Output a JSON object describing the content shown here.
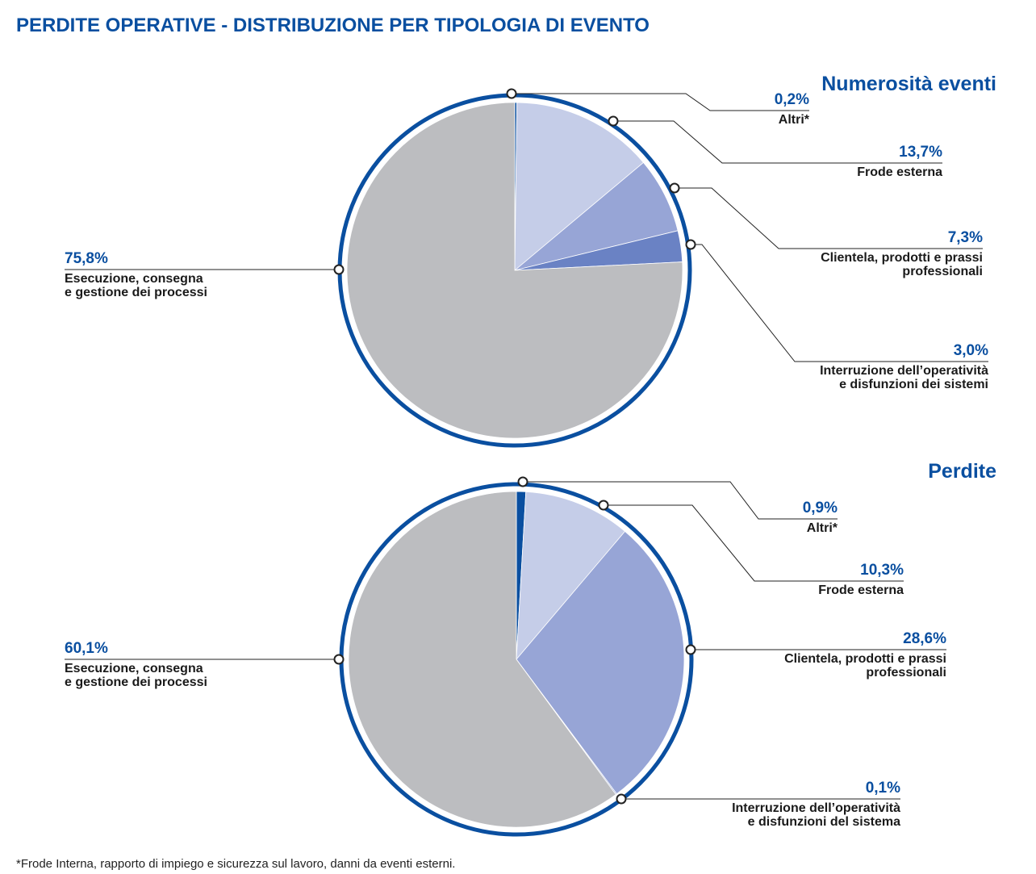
{
  "title": "PERDITE OPERATIVE - DISTRIBUZIONE PER TIPOLOGIA DI EVENTO",
  "footnote": "*Frode Interna, rapporto di impiego e sicurezza sul lavoro, danni da eventi esterni.",
  "chart_data": [
    {
      "type": "pie",
      "title": "Numerosità eventi",
      "categories": [
        "Altri*",
        "Frode esterna",
        "Clientela, prodotti e prassi\nprofessionali",
        "Interruzione dell’operatività\ne disfunzioni dei sistemi",
        "Esecuzione, consegna\ne gestione dei processi"
      ],
      "values": [
        0.2,
        13.7,
        7.3,
        3.0,
        75.8
      ],
      "value_labels": [
        "0,2%",
        "13,7%",
        "7,3%",
        "3,0%",
        "75,8%"
      ],
      "colors": [
        "#0a4fa0",
        "#c5cde8",
        "#97a5d6",
        "#6a82c4",
        "#bcbdc0"
      ]
    },
    {
      "type": "pie",
      "title": "Perdite",
      "categories": [
        "Altri*",
        "Frode esterna",
        "Clientela, prodotti e prassi\nprofessionali",
        "Interruzione dell’operatività\ne disfunzioni del sistema",
        "Esecuzione, consegna\ne gestione dei processi"
      ],
      "values": [
        0.9,
        10.3,
        28.6,
        0.1,
        60.1
      ],
      "value_labels": [
        "0,9%",
        "10,3%",
        "28,6%",
        "0,1%",
        "60,1%"
      ],
      "colors": [
        "#0a4fa0",
        "#c5cde8",
        "#97a5d6",
        "#6a82c4",
        "#bcbdc0"
      ]
    }
  ]
}
